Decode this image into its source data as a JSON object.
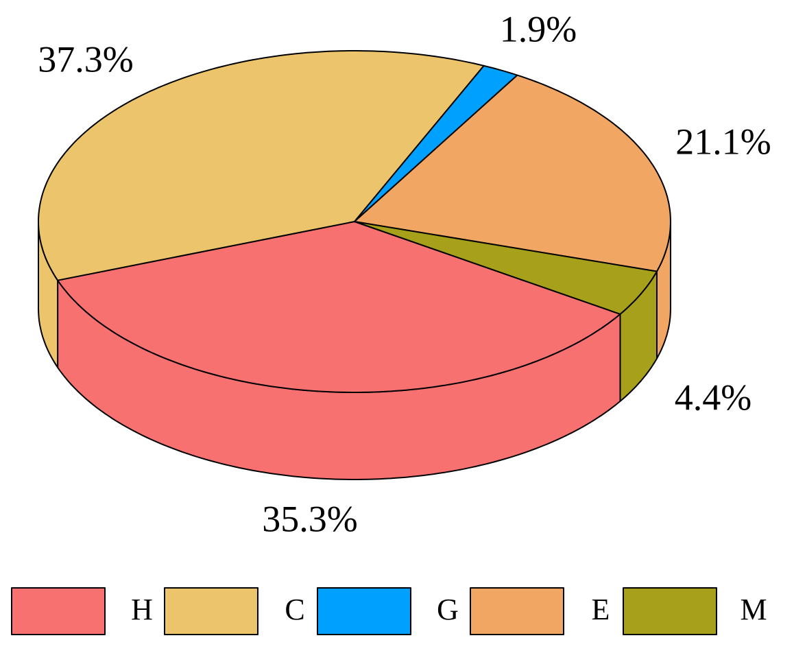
{
  "chart_data": {
    "type": "pie3d",
    "categories": [
      "H",
      "C",
      "G",
      "E",
      "M"
    ],
    "values": [
      35.3,
      37.3,
      1.9,
      21.1,
      4.4
    ],
    "value_labels": [
      "35.3%",
      "37.3%",
      "1.9%",
      "21.1%",
      "4.4%"
    ],
    "colors": [
      "#f87171",
      "#ebc46b",
      "#00a0ff",
      "#f2a663",
      "#a6a01a"
    ],
    "legend": "bottom"
  }
}
